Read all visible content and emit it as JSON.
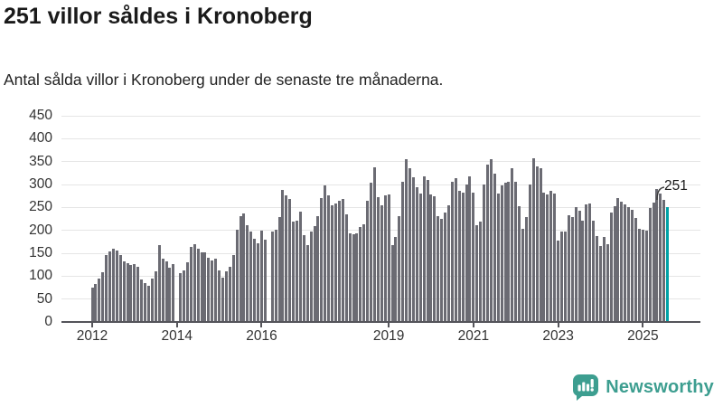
{
  "header": {
    "title": "251 villor såldes i Kronoberg",
    "subtitle": "Antal sålda villor i Kronoberg under de senaste tre månaderna."
  },
  "annotation": {
    "last_value_label": "251"
  },
  "branding": {
    "name": "Newsworthy",
    "logo_icon": "bar-chart-speech-bubble-icon",
    "brand_color": "#3d9e90"
  },
  "chart_data": {
    "type": "bar",
    "title": "251 villor såldes i Kronoberg",
    "subtitle": "Antal sålda villor i Kronoberg under de senaste tre månaderna.",
    "xlabel": "",
    "ylabel": "",
    "ylim": [
      0,
      450
    ],
    "grid": true,
    "legend": false,
    "frequency": "monthly",
    "start_month": "2012-01",
    "end_month": "2025-08",
    "y_ticks": [
      0,
      50,
      100,
      150,
      200,
      250,
      300,
      350,
      400,
      450
    ],
    "x_ticks": [
      {
        "label": "2012",
        "month_index": 0
      },
      {
        "label": "2014",
        "month_index": 24
      },
      {
        "label": "2016",
        "month_index": 48
      },
      {
        "label": "2019",
        "month_index": 84
      },
      {
        "label": "2021",
        "month_index": 108
      },
      {
        "label": "2023",
        "month_index": 132
      },
      {
        "label": "2025",
        "month_index": 156
      }
    ],
    "bar_color": "#6b6b73",
    "highlight_color": "#00a2a6",
    "highlight_index": 163,
    "highlight_value": 251,
    "series": [
      {
        "name": "Antal sålda villor, rullande tre månader",
        "values": [
          75,
          83,
          95,
          108,
          146,
          153,
          159,
          155,
          146,
          133,
          128,
          125,
          127,
          121,
          93,
          85,
          78,
          95,
          111,
          168,
          138,
          133,
          118,
          126,
          null,
          107,
          113,
          130,
          163,
          170,
          160,
          152,
          152,
          141,
          135,
          138,
          113,
          97,
          111,
          120,
          147,
          201,
          230,
          237,
          212,
          197,
          182,
          171,
          200,
          180,
          null,
          197,
          202,
          228,
          288,
          276,
          268,
          220,
          222,
          240,
          190,
          168,
          198,
          209,
          231,
          270,
          298,
          277,
          255,
          258,
          265,
          269,
          235,
          193,
          191,
          193,
          208,
          213,
          265,
          303,
          338,
          273,
          255,
          277,
          279,
          168,
          185,
          231,
          306,
          355,
          335,
          315,
          295,
          281,
          318,
          310,
          278,
          275,
          231,
          225,
          238,
          255,
          306,
          313,
          286,
          283,
          301,
          318,
          283,
          212,
          219,
          300,
          343,
          356,
          323,
          280,
          298,
          303,
          306,
          335,
          306,
          253,
          203,
          228,
          301,
          358,
          339,
          335,
          283,
          278,
          286,
          281,
          178,
          197,
          197,
          233,
          228,
          251,
          243,
          221,
          257,
          259,
          221,
          188,
          165,
          186,
          170,
          238,
          253,
          270,
          263,
          257,
          250,
          245,
          227,
          203,
          201,
          200,
          248,
          260,
          290,
          281,
          267,
          251
        ]
      }
    ]
  }
}
